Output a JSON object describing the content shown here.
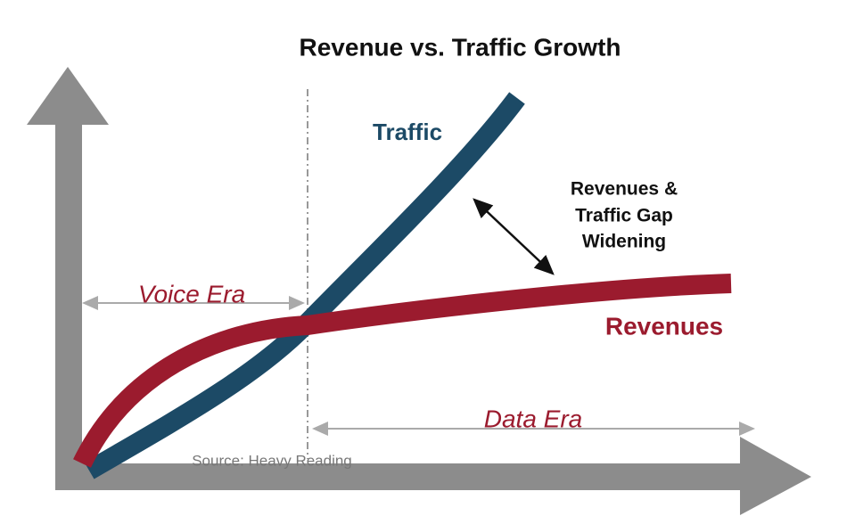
{
  "title": "Revenue vs. Traffic Growth",
  "labels": {
    "traffic": "Traffic",
    "revenues": "Revenues"
  },
  "annotation": [
    "Revenues &",
    "Traffic Gap",
    "Widening"
  ],
  "eras": {
    "voice": "Voice Era",
    "data": "Data Era"
  },
  "source": "Source: Heavy Reading"
}
